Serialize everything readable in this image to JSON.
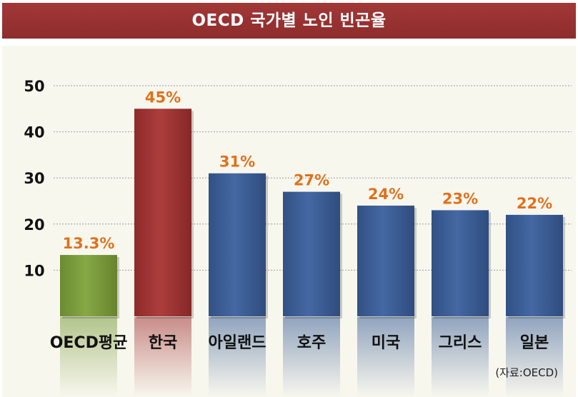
{
  "title": "OECD 국가별 노인 빈곤율",
  "source": "(자료:OECD)",
  "colors": {
    "title_bg": "#962f2f",
    "panel_bg": "#f8f7ee",
    "value_label": "#e0701a",
    "bar_green": "#7a9b3c",
    "bar_red": "#a23535",
    "bar_blue": "#3c5f97"
  },
  "chart_data": {
    "type": "bar",
    "title": "OECD 국가별 노인 빈곤율",
    "categories": [
      "OECD평균",
      "한국",
      "아일랜드",
      "호주",
      "미국",
      "그리스",
      "일본"
    ],
    "values": [
      13.3,
      45,
      31,
      27,
      24,
      23,
      22
    ],
    "value_labels": [
      "13.3%",
      "45%",
      "31%",
      "27%",
      "24%",
      "23%",
      "22%"
    ],
    "bar_colors": [
      "green",
      "red",
      "blue",
      "blue",
      "blue",
      "blue",
      "blue"
    ],
    "yticks": [
      "10",
      "20",
      "30",
      "40",
      "50"
    ],
    "ylim": [
      0,
      50
    ],
    "grid": true,
    "xlabel": "",
    "ylabel": ""
  }
}
